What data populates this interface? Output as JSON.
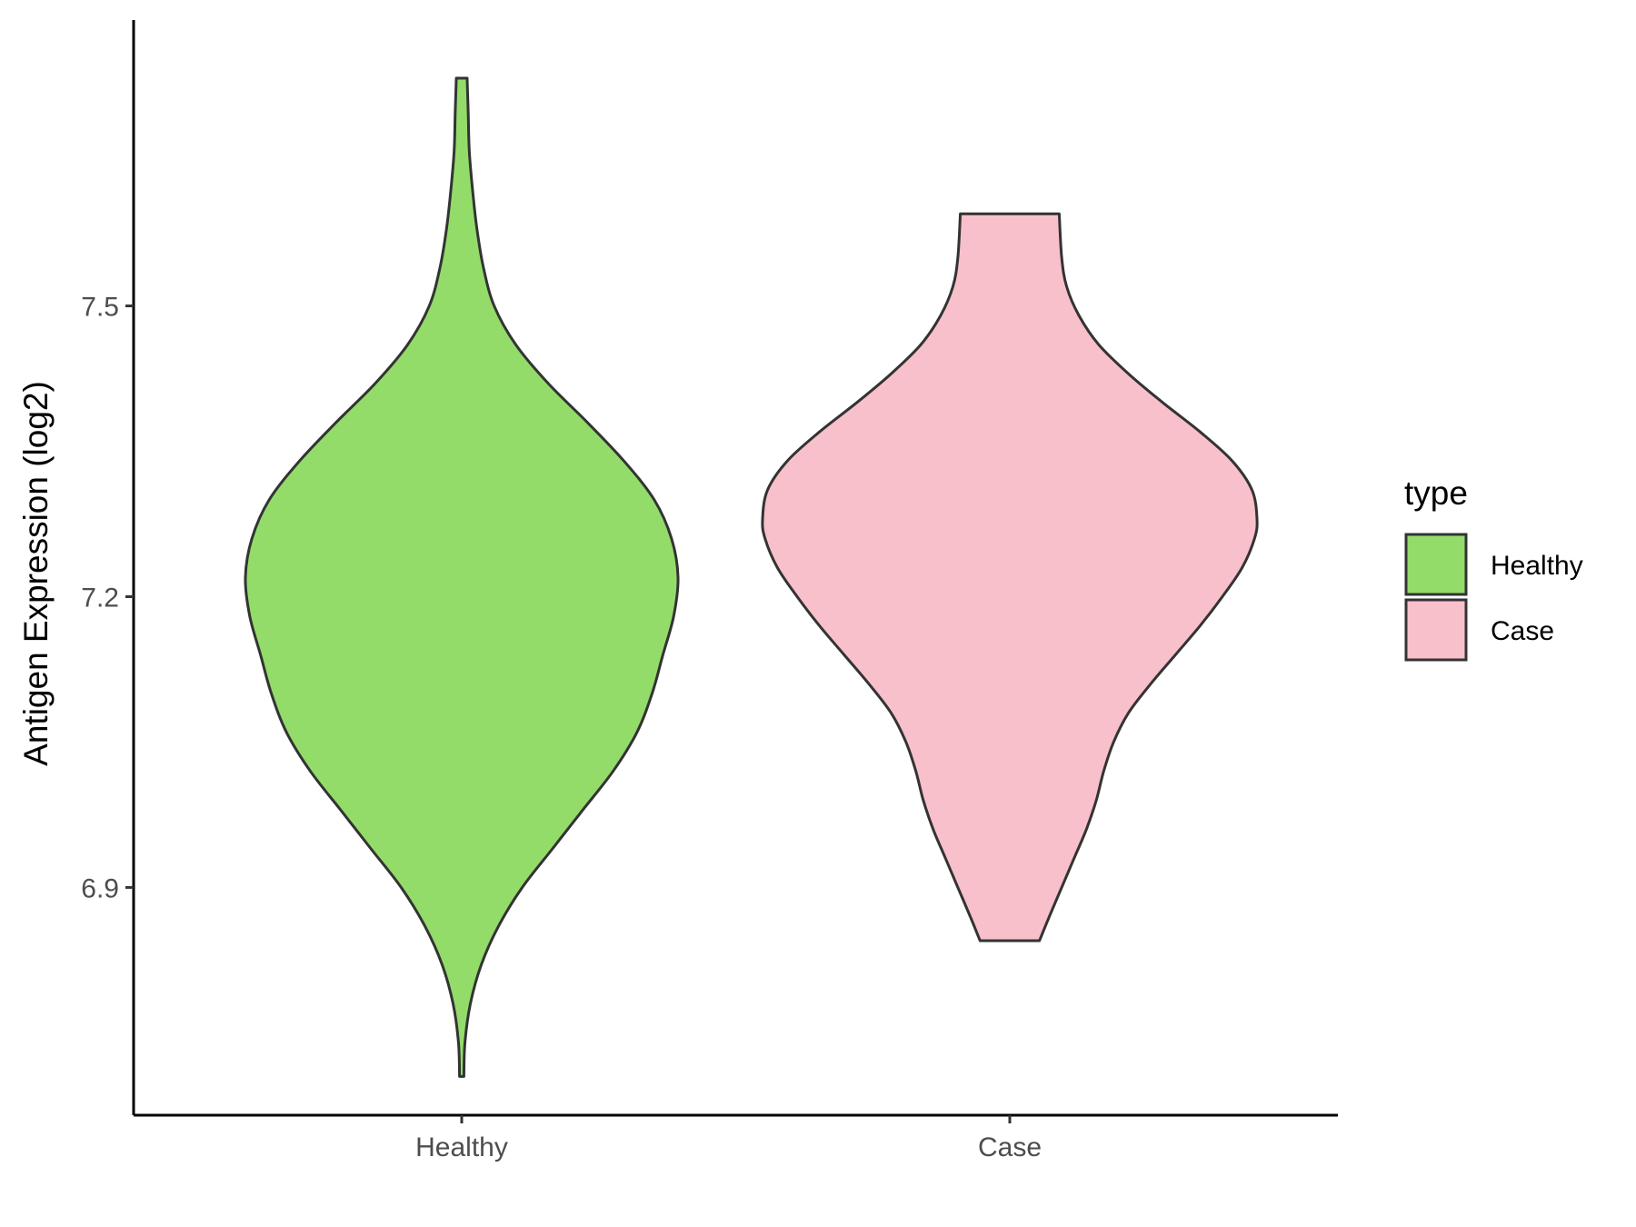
{
  "chart_data": {
    "type": "violin",
    "title": "",
    "xlabel": "",
    "ylabel": "Antigen Expression (log2)",
    "categories": [
      "Healthy",
      "Case"
    ],
    "y_ticks": [
      6.9,
      7.2,
      7.5
    ],
    "y_tick_labels": [
      "6.9",
      "7.2",
      "7.5"
    ],
    "ylim": [
      6.665,
      7.795
    ],
    "legend": {
      "title": "type",
      "position": "right",
      "entries": [
        {
          "label": "Healthy",
          "color": "#93DC6A"
        },
        {
          "label": "Case",
          "color": "#F8C0CB"
        }
      ]
    },
    "series": [
      {
        "name": "Healthy",
        "color": "#93DC6A",
        "min": 6.705,
        "max": 7.735,
        "density_profile": [
          [
            6.705,
            0.01
          ],
          [
            6.74,
            0.015
          ],
          [
            6.78,
            0.04
          ],
          [
            6.82,
            0.09
          ],
          [
            6.86,
            0.17
          ],
          [
            6.9,
            0.28
          ],
          [
            6.94,
            0.42
          ],
          [
            6.98,
            0.56
          ],
          [
            7.02,
            0.7
          ],
          [
            7.06,
            0.81
          ],
          [
            7.1,
            0.88
          ],
          [
            7.14,
            0.93
          ],
          [
            7.18,
            0.98
          ],
          [
            7.22,
            1.0
          ],
          [
            7.26,
            0.97
          ],
          [
            7.3,
            0.89
          ],
          [
            7.34,
            0.75
          ],
          [
            7.38,
            0.58
          ],
          [
            7.42,
            0.4
          ],
          [
            7.46,
            0.25
          ],
          [
            7.5,
            0.15
          ],
          [
            7.54,
            0.1
          ],
          [
            7.58,
            0.07
          ],
          [
            7.62,
            0.05
          ],
          [
            7.66,
            0.035
          ],
          [
            7.7,
            0.03
          ],
          [
            7.735,
            0.025
          ]
        ]
      },
      {
        "name": "Case",
        "color": "#F8C0CB",
        "min": 6.845,
        "max": 7.595,
        "density_profile": [
          [
            6.845,
            0.12
          ],
          [
            6.87,
            0.16
          ],
          [
            6.9,
            0.21
          ],
          [
            6.93,
            0.26
          ],
          [
            6.96,
            0.31
          ],
          [
            6.99,
            0.35
          ],
          [
            7.02,
            0.38
          ],
          [
            7.05,
            0.42
          ],
          [
            7.08,
            0.48
          ],
          [
            7.11,
            0.57
          ],
          [
            7.14,
            0.67
          ],
          [
            7.17,
            0.77
          ],
          [
            7.2,
            0.86
          ],
          [
            7.23,
            0.94
          ],
          [
            7.26,
            0.99
          ],
          [
            7.28,
            1.0
          ],
          [
            7.31,
            0.98
          ],
          [
            7.34,
            0.9
          ],
          [
            7.37,
            0.77
          ],
          [
            7.4,
            0.62
          ],
          [
            7.43,
            0.48
          ],
          [
            7.46,
            0.36
          ],
          [
            7.49,
            0.28
          ],
          [
            7.52,
            0.23
          ],
          [
            7.55,
            0.21
          ],
          [
            7.595,
            0.2
          ]
        ]
      }
    ]
  }
}
